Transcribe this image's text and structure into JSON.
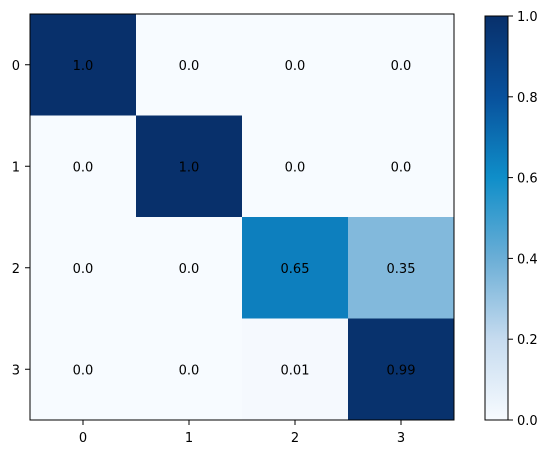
{
  "chart_data": {
    "type": "heatmap",
    "title": "",
    "xlabel": "",
    "ylabel": "",
    "x_categories": [
      "0",
      "1",
      "2",
      "3"
    ],
    "y_categories": [
      "0",
      "1",
      "2",
      "3"
    ],
    "values": [
      [
        1.0,
        0.0,
        0.0,
        0.0
      ],
      [
        0.0,
        1.0,
        0.0,
        0.0
      ],
      [
        0.0,
        0.0,
        0.65,
        0.35
      ],
      [
        0.0,
        0.0,
        0.01,
        0.99
      ]
    ],
    "cell_labels": [
      [
        "1.0",
        "0.0",
        "0.0",
        "0.0"
      ],
      [
        "0.0",
        "1.0",
        "0.0",
        "0.0"
      ],
      [
        "0.0",
        "0.0",
        "0.65",
        "0.35"
      ],
      [
        "0.0",
        "0.0",
        "0.01",
        "0.99"
      ]
    ],
    "colormap": "Blues",
    "colormap_stops": [
      "#f7fbff",
      "#c6dbef",
      "#6baed6",
      "#0f8ec9",
      "#08519c",
      "#08306b"
    ],
    "colorbar": {
      "range": [
        0.0,
        1.0
      ],
      "ticks": [
        "0.0",
        "0.2",
        "0.4",
        "0.6",
        "0.8",
        "1.0"
      ],
      "tick_values": [
        0.0,
        0.2,
        0.4,
        0.6,
        0.8,
        1.0
      ],
      "placement": "right"
    },
    "grid": false
  }
}
